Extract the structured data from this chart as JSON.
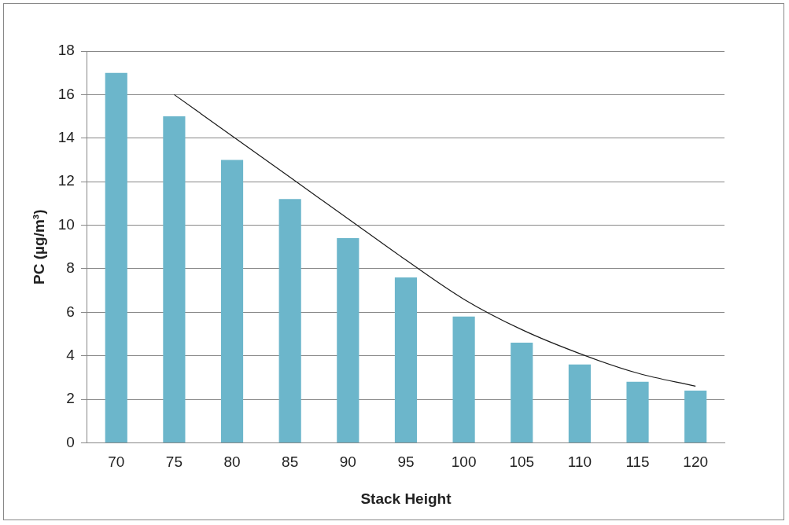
{
  "chart_data": {
    "type": "bar",
    "xlabel": "Stack Height",
    "ylabel": "PC (µg/m³)",
    "categories": [
      "70",
      "75",
      "80",
      "85",
      "90",
      "95",
      "100",
      "105",
      "110",
      "115",
      "120"
    ],
    "series": [
      {
        "color": "#6cb6cb",
        "values": [
          17,
          15,
          13,
          11.2,
          9.4,
          7.6,
          5.8,
          4.6,
          3.6,
          2.8,
          2.4
        ]
      },
      {
        "type": "line",
        "color": "#1a1a1a",
        "values": [
          null,
          16,
          14.1,
          12.2,
          10.3,
          8.4,
          6.6,
          5.2,
          4.1,
          3.2,
          2.6
        ]
      }
    ],
    "ylim": [
      0,
      18
    ],
    "yticks": [
      0,
      2,
      4,
      6,
      8,
      10,
      12,
      14,
      16,
      18
    ],
    "grid": "y",
    "legend": false,
    "marker": "none"
  }
}
